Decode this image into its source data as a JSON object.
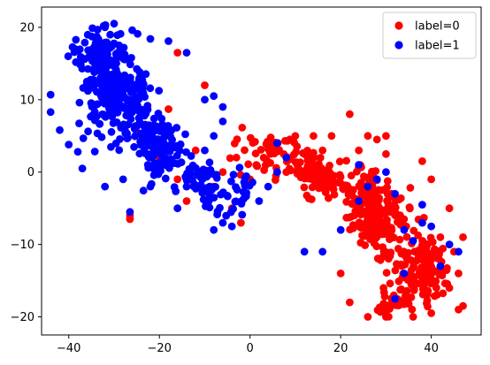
{
  "chart_data": {
    "type": "scatter",
    "title": "",
    "xlabel": "",
    "ylabel": "",
    "xlim": [
      -46,
      51
    ],
    "ylim": [
      -22.5,
      22.8
    ],
    "xticks": [
      -40,
      -20,
      0,
      20,
      40
    ],
    "yticks": [
      -20,
      -10,
      0,
      10,
      20
    ],
    "grid": false,
    "legend_position": "top-right",
    "series": [
      {
        "name": "label=0",
        "color": "#ff0000",
        "clusters": [
          {
            "cx": 28,
            "cy": -6,
            "sx": 7,
            "sy": 4.5,
            "n": 220,
            "angle": -35
          },
          {
            "cx": 38,
            "cy": -13,
            "sx": 4.5,
            "sy": 4,
            "n": 110,
            "angle": -30
          },
          {
            "cx": 14,
            "cy": 0,
            "sx": 8,
            "sy": 2.6,
            "n": 110,
            "angle": -20
          },
          {
            "cx": 32,
            "cy": -18,
            "sx": 5,
            "sy": 1.6,
            "n": 50,
            "angle": 0
          },
          {
            "cx": 2,
            "cy": 2,
            "sx": 5,
            "sy": 2.5,
            "n": 30,
            "angle": -15
          },
          {
            "cx": 6,
            "cy": 4,
            "sx": 3,
            "sy": 1.5,
            "n": 15,
            "angle": 0
          }
        ],
        "points": [
          [
            -16,
            16.5
          ],
          [
            -10,
            12
          ],
          [
            -26.5,
            -6
          ],
          [
            -26.5,
            -6.5
          ],
          [
            -25,
            5.5
          ],
          [
            -22,
            6
          ],
          [
            -18,
            8.7
          ],
          [
            -20,
            2
          ],
          [
            -14,
            -4
          ],
          [
            -8,
            -2
          ],
          [
            -16,
            -1
          ],
          [
            -12,
            3
          ],
          [
            -4,
            -5
          ],
          [
            -2,
            -7
          ],
          [
            -6,
            0
          ],
          [
            -3,
            2
          ],
          [
            0,
            -1
          ],
          [
            20,
            -14
          ],
          [
            22,
            -18
          ],
          [
            26,
            -20
          ],
          [
            30,
            -20
          ],
          [
            36,
            -20
          ],
          [
            40,
            -19.5
          ],
          [
            46,
            -19
          ],
          [
            47,
            -18.5
          ],
          [
            44,
            -16
          ],
          [
            46,
            -14
          ],
          [
            45,
            -11
          ],
          [
            42,
            -9
          ],
          [
            47,
            -9
          ],
          [
            44,
            -5
          ],
          [
            30,
            5
          ],
          [
            28,
            4.5
          ],
          [
            18,
            5
          ],
          [
            22,
            8
          ],
          [
            26,
            5
          ],
          [
            38,
            1.5
          ],
          [
            40,
            -1
          ],
          [
            10,
            5
          ],
          [
            14,
            5
          ],
          [
            16,
            3
          ],
          [
            24,
            3
          ],
          [
            30,
            2.5
          ],
          [
            8,
            0
          ]
        ]
      },
      {
        "name": "label=1",
        "color": "#0000ff",
        "clusters": [
          {
            "cx": -30,
            "cy": 11,
            "sx": 6.5,
            "sy": 5,
            "n": 270,
            "angle": -20
          },
          {
            "cx": -20,
            "cy": 4,
            "sx": 6,
            "sy": 4,
            "n": 130,
            "angle": -30
          },
          {
            "cx": -33,
            "cy": 17,
            "sx": 6,
            "sy": 2.2,
            "n": 70,
            "angle": 0
          },
          {
            "cx": -10,
            "cy": -2,
            "sx": 5,
            "sy": 3,
            "n": 60,
            "angle": -25
          },
          {
            "cx": -2,
            "cy": -3,
            "sx": 3,
            "sy": 2.5,
            "n": 25,
            "angle": 0
          }
        ],
        "points": [
          [
            -44,
            10.7
          ],
          [
            -44,
            8.3
          ],
          [
            -42,
            5.8
          ],
          [
            -40,
            3.8
          ],
          [
            -37,
            0.5
          ],
          [
            -38,
            2.8
          ],
          [
            -32,
            20
          ],
          [
            -30,
            20.5
          ],
          [
            -26,
            19.6
          ],
          [
            -22,
            18.4
          ],
          [
            -18,
            18.1
          ],
          [
            -14,
            16.5
          ],
          [
            -10,
            10
          ],
          [
            -8,
            10.5
          ],
          [
            -6,
            9
          ],
          [
            -6,
            7
          ],
          [
            -8,
            5
          ],
          [
            -10,
            3
          ],
          [
            -26.5,
            -5.5
          ],
          [
            -28,
            -1
          ],
          [
            -32,
            -2
          ],
          [
            -22,
            -2
          ],
          [
            -16,
            -5
          ],
          [
            -14,
            -2
          ],
          [
            -8,
            -8
          ],
          [
            -6,
            -7
          ],
          [
            -4,
            -7.5
          ],
          [
            2,
            -4
          ],
          [
            4,
            -2
          ],
          [
            6,
            0
          ],
          [
            8,
            2
          ],
          [
            6,
            4
          ],
          [
            12,
            -11
          ],
          [
            16,
            -11
          ],
          [
            20,
            -8
          ],
          [
            24,
            -4
          ],
          [
            26,
            -2
          ],
          [
            28,
            -1
          ],
          [
            30,
            0
          ],
          [
            34,
            -8
          ],
          [
            36,
            -9.5
          ],
          [
            34,
            -14
          ],
          [
            32,
            -17.5
          ],
          [
            46,
            -11
          ],
          [
            38,
            -4.5
          ],
          [
            38,
            -7
          ],
          [
            24,
            1
          ],
          [
            32,
            -3
          ],
          [
            42,
            -13
          ],
          [
            44,
            -10
          ],
          [
            40,
            -7.5
          ]
        ]
      }
    ]
  }
}
